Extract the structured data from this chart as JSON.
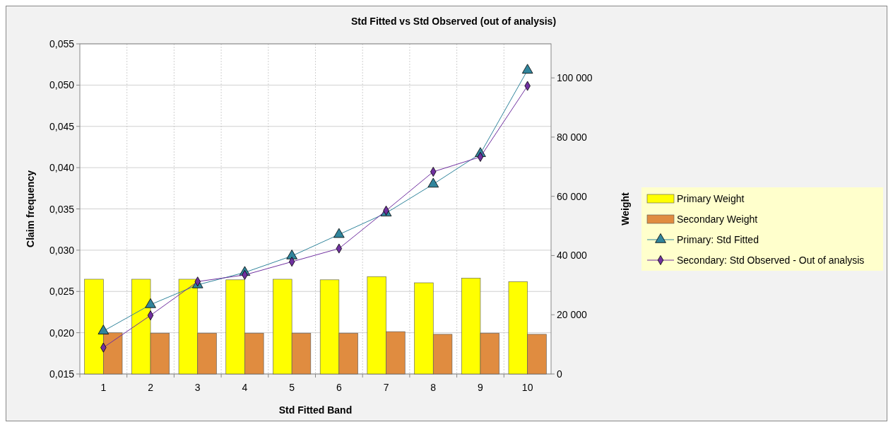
{
  "chart_data": {
    "type": "bar",
    "title": "Std Fitted vs Std Observed (out of analysis)",
    "xlabel": "Std Fitted Band",
    "ylabel": "Claim frequency",
    "y2label": "Weight",
    "categories": [
      "1",
      "2",
      "3",
      "4",
      "5",
      "6",
      "7",
      "8",
      "9",
      "10"
    ],
    "series": [
      {
        "name": "Primary Weight",
        "axis": "y2",
        "color": "#ffff00",
        "values": [
          32000,
          32000,
          32000,
          31800,
          32000,
          31800,
          32900,
          30800,
          32400,
          31200
        ]
      },
      {
        "name": "Secondary Weight",
        "axis": "y2",
        "color": "#e08c40",
        "values": [
          13900,
          13800,
          13800,
          13800,
          13800,
          13800,
          14300,
          13400,
          13800,
          13400
        ]
      },
      {
        "name": "Primary: Std Fitted",
        "type": "line",
        "color": "#31859c",
        "marker": "triangle",
        "values": [
          0.0202,
          0.0234,
          0.0258,
          0.0273,
          0.0293,
          0.0319,
          0.0345,
          0.038,
          0.0417,
          0.0518
        ]
      },
      {
        "name": "Secondary: Std Observed - Out of analysis",
        "type": "line",
        "color": "#7030a0",
        "marker": "diamond",
        "values": [
          0.0182,
          0.0221,
          0.0262,
          0.027,
          0.0286,
          0.0302,
          0.0348,
          0.0395,
          0.0413,
          0.0499
        ]
      }
    ],
    "ylim": [
      0.015,
      0.055
    ],
    "yticks": [
      {
        "value": 0.015,
        "label": "0,015"
      },
      {
        "value": 0.02,
        "label": "0,020"
      },
      {
        "value": 0.025,
        "label": "0,025"
      },
      {
        "value": 0.03,
        "label": "0,030"
      },
      {
        "value": 0.035,
        "label": "0,035"
      },
      {
        "value": 0.04,
        "label": "0,040"
      },
      {
        "value": 0.045,
        "label": "0,045"
      },
      {
        "value": 0.05,
        "label": "0,050"
      },
      {
        "value": 0.055,
        "label": "0,055"
      }
    ],
    "y2lim": [
      0,
      111500
    ],
    "y2ticks": [
      0,
      {
        "value": 20000,
        "label": "20 000"
      },
      {
        "value": 40000,
        "label": "40 000"
      },
      {
        "value": 60000,
        "label": "60 000"
      },
      {
        "value": 80000,
        "label": "80 000"
      },
      {
        "value": 100000,
        "label": "100 000"
      }
    ],
    "grid": true,
    "legend": "right"
  }
}
